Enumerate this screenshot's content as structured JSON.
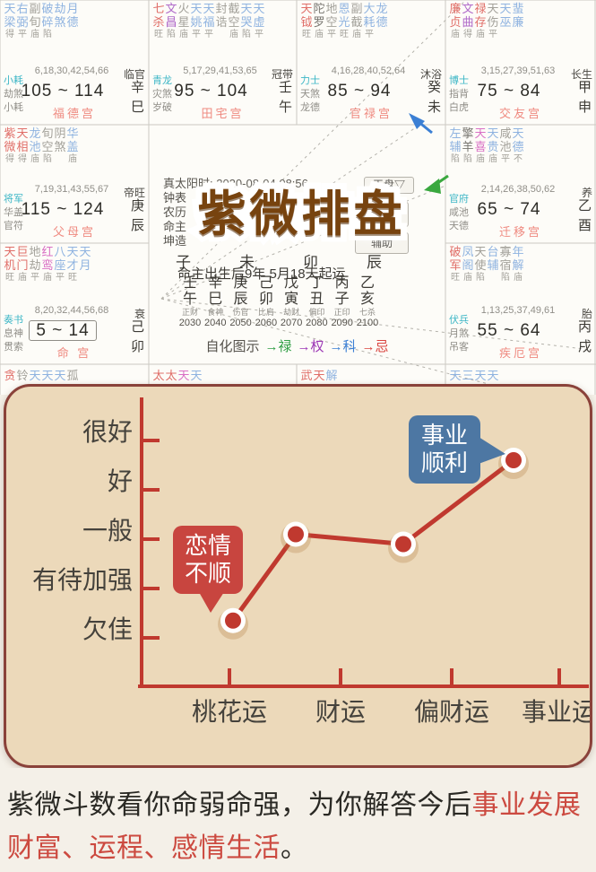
{
  "palette": {
    "red": "#e06e68",
    "blue": "#8fb3e0",
    "gray": "#a3a19a",
    "dgray": "#77756f",
    "purple": "#b06ac9",
    "magenta": "#d970c5",
    "cyan": "#3cb6c6",
    "pink": "#ef8a80",
    "ink": "#3c3a35",
    "faint": "#908e88",
    "grid": "#cbc9c2",
    "dash": "#b5b3ac",
    "arrow_blue": "#3b7fd4",
    "arrow_green": "#3aa83f",
    "axis_red": "#c0392f",
    "bubble_red": "#c8453f",
    "bubble_blue": "#4d77a3",
    "panel_bg": "#ecd9ba",
    "panel_border": "#8a423a",
    "footer_dark": "#2a2924",
    "footer_red": "#cc4a40",
    "label_dark": "#45423c"
  },
  "natal": {
    "center": {
      "title": "紫微排盘",
      "info_lines": [
        "真太阳时: 2020-08-04 08:56",
        "钟表",
        "农历",
        "命主",
        "坤造"
      ],
      "buttons": [
        "天盘▽",
        "盘",
        "辅助"
      ],
      "branch_row": [
        "子",
        "未",
        "卯",
        "辰"
      ],
      "luck_note": "命主出生后9年 5月18天起运",
      "decades": [
        {
          "stem": "壬",
          "branch": "午",
          "god": "正财",
          "year": "2030"
        },
        {
          "stem": "辛",
          "branch": "巳",
          "god": "食神",
          "year": "2040"
        },
        {
          "stem": "庚",
          "branch": "辰",
          "god": "伤官",
          "year": "2050"
        },
        {
          "stem": "己",
          "branch": "卯",
          "god": "比肩",
          "year": "2060"
        },
        {
          "stem": "戊",
          "branch": "寅",
          "god": "劫财",
          "year": "2070"
        },
        {
          "stem": "丁",
          "branch": "丑",
          "god": "偏印",
          "year": "2080"
        },
        {
          "stem": "丙",
          "branch": "子",
          "god": "正印",
          "year": "2090"
        },
        {
          "stem": "乙",
          "branch": "亥",
          "god": "七杀",
          "year": "2100"
        }
      ],
      "selfhua_label": "自化图示",
      "selfhua_items": [
        {
          "text": "→禄",
          "color": "#2f9e44"
        },
        {
          "text": "→权",
          "color": "#9c36b5"
        },
        {
          "text": "→科",
          "color": "#3b7fd4"
        },
        {
          "text": "→忌",
          "color": "#d9443f"
        }
      ]
    },
    "palaces": [
      {
        "pos": "r1c1",
        "palace": "福德宫",
        "stage": "临官",
        "age": "105 ~ 114",
        "stem": "辛",
        "branch": "巳",
        "nums": "6,18,30,42,54,66",
        "gods": [
          "小耗",
          "劫煞",
          "小耗"
        ],
        "boxed_age": false,
        "stars": [
          [
            "天",
            "梁",
            "得",
            "blue"
          ],
          [
            "右",
            "弼",
            "平",
            "blue"
          ],
          [
            "副",
            "旬",
            "庙",
            "gray"
          ],
          [
            "破",
            "碎",
            "陷",
            "blue"
          ],
          [
            "劫",
            "煞",
            "",
            "blue"
          ],
          [
            "月",
            "德",
            "",
            "blue"
          ]
        ]
      },
      {
        "pos": "r1c2",
        "palace": "田宅宫",
        "stage": "冠带",
        "age": "95 ~ 104",
        "stem": "壬",
        "branch": "午",
        "nums": "5,17,29,41,53,65",
        "gods": [
          "青龙",
          "灾煞",
          "岁破"
        ],
        "boxed_age": false,
        "stars": [
          [
            "七",
            "杀",
            "旺",
            "red"
          ],
          [
            "文",
            "昌",
            "陷",
            "purple"
          ],
          [
            "火",
            "星",
            "庙",
            "gray"
          ],
          [
            "天",
            "姚",
            "平",
            "blue"
          ],
          [
            "天",
            "福",
            "平",
            "blue"
          ],
          [
            "封",
            "诰",
            "",
            "gray"
          ],
          [
            "截",
            "空",
            "庙",
            "gray"
          ],
          [
            "天",
            "哭",
            "陷",
            "blue"
          ],
          [
            "天",
            "虚",
            "平",
            "blue"
          ]
        ]
      },
      {
        "pos": "r1c3",
        "palace": "官禄宫",
        "stage": "沐浴",
        "age": "85 ~ 94",
        "stem": "癸",
        "branch": "未",
        "nums": "4,16,28,40,52,64",
        "gods": [
          "力士",
          "天煞",
          "龙德"
        ],
        "boxed_age": false,
        "stars": [
          [
            "天",
            "钺",
            "旺",
            "red"
          ],
          [
            "陀",
            "罗",
            "庙",
            "dgray"
          ],
          [
            "地",
            "空",
            "平",
            "gray"
          ],
          [
            "恩",
            "光",
            "旺",
            "blue"
          ],
          [
            "副",
            "截",
            "庙",
            "gray"
          ],
          [
            "大",
            "耗",
            "平",
            "blue"
          ],
          [
            "龙",
            "德",
            "",
            "blue"
          ]
        ]
      },
      {
        "pos": "r1c4",
        "palace": "交友宫",
        "stage": "长生",
        "age": "75 ~ 84",
        "stem": "甲",
        "branch": "申",
        "nums": "3,15,27,39,51,63",
        "gods": [
          "博士",
          "指背",
          "白虎"
        ],
        "boxed_age": false,
        "stars": [
          [
            "廉",
            "贞",
            "庙",
            "red"
          ],
          [
            "文",
            "曲",
            "得",
            "purple"
          ],
          [
            "禄",
            "存",
            "庙",
            "red"
          ],
          [
            "天",
            "伤",
            "平",
            "gray"
          ],
          [
            "天",
            "巫",
            "",
            "blue"
          ],
          [
            "蜚",
            "廉",
            "",
            "blue"
          ]
        ]
      },
      {
        "pos": "r2c1",
        "palace": "父母宫",
        "stage": "帝旺",
        "age": "115 ~ 124",
        "stem": "庚",
        "branch": "辰",
        "nums": "7,19,31,43,55,67",
        "gods": [
          "将军",
          "华盖",
          "官符"
        ],
        "boxed_age": false,
        "stars": [
          [
            "紫",
            "微",
            "得",
            "red"
          ],
          [
            "天",
            "相",
            "得",
            "red"
          ],
          [
            "龙",
            "池",
            "庙",
            "blue"
          ],
          [
            "旬",
            "空",
            "陷",
            "gray"
          ],
          [
            "阴",
            "煞",
            "",
            "gray"
          ],
          [
            "华",
            "盖",
            "庙",
            "blue"
          ]
        ]
      },
      {
        "pos": "r2c4",
        "palace": "迁移宫",
        "stage": "养",
        "age": "65 ~ 74",
        "stem": "乙",
        "branch": "酉",
        "nums": "2,14,26,38,50,62",
        "gods": [
          "官府",
          "咸池",
          "天德"
        ],
        "boxed_age": false,
        "stars": [
          [
            "左",
            "辅",
            "陷",
            "blue"
          ],
          [
            "擎",
            "羊",
            "陷",
            "dgray"
          ],
          [
            "天",
            "喜",
            "庙",
            "magenta"
          ],
          [
            "天",
            "贵",
            "庙",
            "blue"
          ],
          [
            "咸",
            "池",
            "平",
            "gray"
          ],
          [
            "天",
            "德",
            "不",
            "blue"
          ]
        ]
      },
      {
        "pos": "r3c1",
        "palace": "命 宫",
        "stage": "衰",
        "age": "5 ~ 14",
        "stem": "己",
        "branch": "卯",
        "nums": "8,20,32,44,56,68",
        "gods": [
          "奏书",
          "息神",
          "贯索"
        ],
        "boxed_age": true,
        "stars": [
          [
            "天",
            "机",
            "旺",
            "red"
          ],
          [
            "巨",
            "门",
            "庙",
            "red"
          ],
          [
            "地",
            "劫",
            "平",
            "gray"
          ],
          [
            "红",
            "鸾",
            "庙",
            "magenta"
          ],
          [
            "八",
            "座",
            "平",
            "blue"
          ],
          [
            "天",
            "才",
            "旺",
            "blue"
          ],
          [
            "天",
            "月",
            "",
            "blue"
          ]
        ]
      },
      {
        "pos": "r3c4",
        "palace": "疾厄宫",
        "stage": "胎",
        "age": "55 ~ 64",
        "stem": "丙",
        "branch": "戌",
        "nums": "1,13,25,37,49,61",
        "gods": [
          "伏兵",
          "月煞",
          "吊客"
        ],
        "boxed_age": false,
        "stars": [
          [
            "破",
            "军",
            "旺",
            "red"
          ],
          [
            "凤",
            "阁",
            "庙",
            "blue"
          ],
          [
            "天",
            "使",
            "陷",
            "gray"
          ],
          [
            "台",
            "辅",
            "",
            "blue"
          ],
          [
            "寡",
            "宿",
            "陷",
            "gray"
          ],
          [
            "年",
            "解",
            "庙",
            "blue"
          ]
        ]
      }
    ],
    "fragments": [
      {
        "pos": "f1",
        "chars": [
          [
            "贪",
            "red"
          ],
          [
            "铃",
            "gray"
          ],
          [
            "天",
            "blue"
          ],
          [
            "天",
            "blue"
          ],
          [
            "天",
            "blue"
          ],
          [
            "孤",
            "gray"
          ]
        ]
      },
      {
        "pos": "f2",
        "chars": [
          [
            "太",
            "red"
          ],
          [
            "太",
            "red"
          ],
          [
            "天",
            "magenta"
          ],
          [
            "天",
            "blue"
          ]
        ]
      },
      {
        "pos": "f3",
        "chars": [
          [
            "武",
            "red"
          ],
          [
            "天",
            "red"
          ],
          [
            "解",
            "blue"
          ]
        ]
      },
      {
        "pos": "f4",
        "chars": [
          [
            "天",
            "blue"
          ],
          [
            "三",
            "blue"
          ],
          [
            "天",
            "blue"
          ],
          [
            "天",
            "blue"
          ]
        ]
      }
    ]
  },
  "fortune": {
    "chart_data": {
      "type": "line",
      "categories": [
        "桃花运",
        "财运",
        "偏财运",
        "事业运"
      ],
      "values": [
        1.35,
        3.1,
        2.9,
        4.6
      ],
      "value_range": [
        1,
        5
      ],
      "y_tick_labels": [
        "欠佳",
        "有待加强",
        "一般",
        "好",
        "很好"
      ],
      "line_color": "#c0392f",
      "grid": false,
      "legend": false,
      "annotations": [
        {
          "category": "桃花运",
          "lines": [
            "恋情",
            "不顺"
          ],
          "color": "#c8453f",
          "side": "top"
        },
        {
          "category": "事业运",
          "lines": [
            "事业",
            "顺利"
          ],
          "color": "#4d77a3",
          "side": "left"
        }
      ]
    }
  },
  "footer": {
    "lines": [
      [
        {
          "t": "紫微斗数看你命弱命强，为你解答今后",
          "c": "dark"
        },
        {
          "t": "事业发展",
          "c": "red"
        }
      ],
      [
        {
          "t": "财富、运程、感情生活",
          "c": "red"
        },
        {
          "t": "。",
          "c": "dark"
        }
      ]
    ]
  }
}
